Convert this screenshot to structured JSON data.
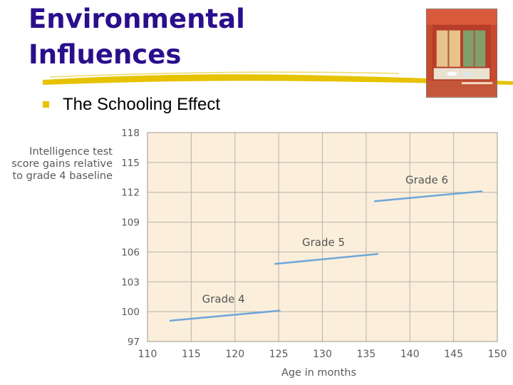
{
  "slide": {
    "title_line1": "Environmental",
    "title_line2": "Influences",
    "bullet": "The Schooling Effect"
  },
  "colors": {
    "title": "#2a0f8c",
    "bullet": "#e6c200",
    "underline": "#e6c200",
    "plot_bg": "#fbefdc",
    "grid": "#b9b2a8",
    "line": "#6ea6d8",
    "axis_text": "#5a5a5a",
    "series_label": "#555555"
  },
  "chart_data": {
    "type": "line",
    "ylabel": [
      "Intelligence test",
      "score gains relative",
      "to grade 4 baseline"
    ],
    "xlabel": "Age in months",
    "xlim": [
      110,
      150
    ],
    "ylim": [
      97,
      118
    ],
    "xticks": [
      110,
      115,
      120,
      125,
      130,
      135,
      140,
      145,
      150
    ],
    "yticks": [
      97,
      100,
      103,
      106,
      109,
      112,
      115,
      118
    ],
    "grid": true,
    "series": [
      {
        "name": "Grade 4",
        "x": [
          112.6,
          125.1
        ],
        "y": [
          99.1,
          100.1
        ]
      },
      {
        "name": "Grade 5",
        "x": [
          124.6,
          136.3
        ],
        "y": [
          104.8,
          105.8
        ]
      },
      {
        "name": "Grade 6",
        "x": [
          136.0,
          148.2
        ],
        "y": [
          111.1,
          112.1
        ]
      }
    ]
  }
}
